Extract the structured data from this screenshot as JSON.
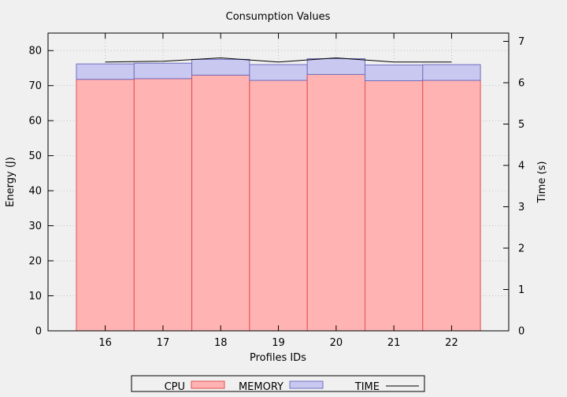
{
  "chart_data": {
    "type": "bar",
    "title": "Consumption Values",
    "xlabel": "Profiles IDs",
    "ylabel": "Energy (J)",
    "y2label": "Time (s)",
    "categories": [
      "16",
      "17",
      "18",
      "19",
      "20",
      "21",
      "22"
    ],
    "ylim": [
      0,
      85
    ],
    "y2lim": [
      0,
      7.2
    ],
    "yticks": [
      0,
      10,
      20,
      30,
      40,
      50,
      60,
      70,
      80
    ],
    "y2ticks": [
      0,
      1,
      2,
      3,
      4,
      5,
      6,
      7
    ],
    "grid": true,
    "stacked": true,
    "legend_position": "bottom",
    "series": [
      {
        "name": "CPU",
        "axis": "left",
        "kind": "bar",
        "color": "#ffb3b3",
        "edge": "#e05050",
        "values": [
          71.8,
          72.0,
          73.0,
          71.5,
          73.2,
          71.4,
          71.5
        ]
      },
      {
        "name": "MEMORY",
        "axis": "left",
        "kind": "bar",
        "color": "#c8c8f0",
        "edge": "#7070c0",
        "values": [
          4.4,
          4.4,
          4.5,
          4.5,
          4.5,
          4.5,
          4.5
        ]
      },
      {
        "name": "TIME",
        "axis": "right",
        "kind": "line",
        "color": "#000000",
        "values": [
          6.5,
          6.52,
          6.6,
          6.5,
          6.6,
          6.5,
          6.5
        ]
      }
    ]
  }
}
